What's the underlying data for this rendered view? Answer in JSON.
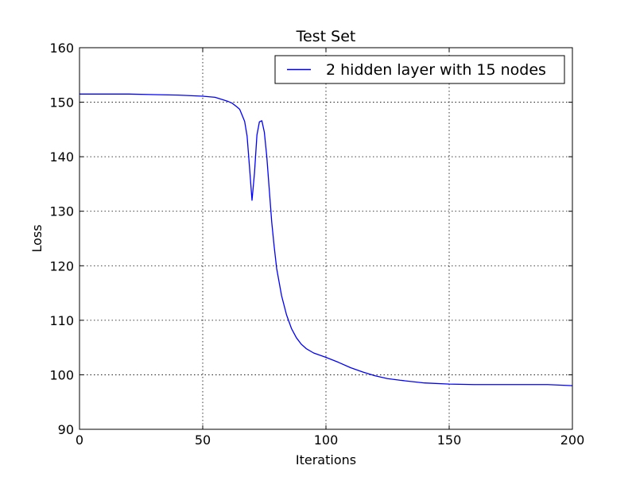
{
  "chart_data": {
    "type": "line",
    "title": "Test Set",
    "xlabel": "Iterations",
    "ylabel": "Loss",
    "xlim": [
      0,
      200
    ],
    "ylim": [
      90,
      160
    ],
    "xticks": [
      0,
      50,
      100,
      150,
      200
    ],
    "yticks": [
      90,
      100,
      110,
      120,
      130,
      140,
      150,
      160
    ],
    "grid": true,
    "legend_position": "top-right",
    "series": [
      {
        "name": "2 hidden layer with 15 nodes",
        "color": "#0000ff",
        "x": [
          0,
          10,
          20,
          30,
          40,
          50,
          55,
          60,
          62,
          64,
          65,
          66,
          67,
          68,
          69,
          70,
          71,
          72,
          73,
          74,
          75,
          76,
          77,
          78,
          79,
          80,
          82,
          84,
          86,
          88,
          90,
          92,
          95,
          100,
          105,
          110,
          115,
          120,
          125,
          130,
          140,
          150,
          160,
          170,
          180,
          190,
          200
        ],
        "y": [
          151.5,
          151.5,
          151.5,
          151.4,
          151.3,
          151.1,
          150.9,
          150.2,
          149.8,
          149.1,
          148.7,
          147.6,
          146.5,
          143.8,
          138.0,
          132.0,
          137.0,
          144.0,
          146.4,
          146.6,
          144.5,
          140.0,
          134.0,
          128.0,
          123.5,
          119.5,
          114.5,
          111.0,
          108.5,
          106.8,
          105.6,
          104.8,
          104.0,
          103.2,
          102.3,
          101.3,
          100.5,
          99.8,
          99.3,
          99.0,
          98.5,
          98.3,
          98.2,
          98.2,
          98.2,
          98.2,
          98.0
        ]
      }
    ]
  }
}
